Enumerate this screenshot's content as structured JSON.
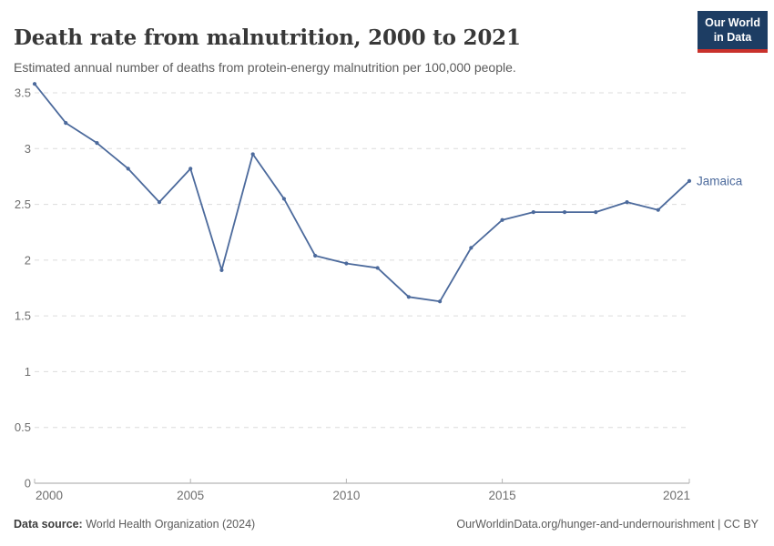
{
  "header": {
    "title": "Death rate from malnutrition, 2000 to 2021",
    "subtitle": "Estimated annual number of deaths from protein-energy malnutrition per 100,000 people.",
    "logo": {
      "line1": "Our World",
      "line2": "in Data"
    }
  },
  "chart_data": {
    "type": "line",
    "title": "Death rate from malnutrition, 2000 to 2021",
    "subtitle": "Estimated annual number of deaths from protein-energy malnutrition per 100,000 people.",
    "x": [
      2000,
      2001,
      2002,
      2003,
      2004,
      2005,
      2006,
      2007,
      2008,
      2009,
      2010,
      2011,
      2012,
      2013,
      2014,
      2015,
      2016,
      2017,
      2018,
      2019,
      2020,
      2021
    ],
    "series": [
      {
        "name": "Jamaica",
        "values": [
          3.58,
          3.23,
          3.05,
          2.82,
          2.52,
          2.82,
          1.91,
          2.95,
          2.55,
          2.04,
          1.97,
          1.93,
          1.67,
          1.63,
          2.11,
          2.36,
          2.43,
          2.43,
          2.43,
          2.52,
          2.45,
          2.71
        ]
      }
    ],
    "xlabel": "",
    "ylabel": "",
    "ylim": [
      0,
      3.5
    ],
    "yticks": [
      0,
      0.5,
      1,
      1.5,
      2,
      2.5,
      3,
      3.5
    ],
    "xticks": [
      2000,
      2005,
      2010,
      2015,
      2021
    ],
    "grid": "horizontal-dashed",
    "legend_position": "end-of-line-label",
    "end_label": "Jamaica"
  },
  "colors": {
    "line": "#4C6A9C",
    "grid": "#dcdcdc",
    "axis": "#a3a3a3",
    "tick": "#b5b5b5",
    "tick_text": "#6e6e6e",
    "entity_label": "#4C6A9C"
  },
  "footer": {
    "source_label": "Data source:",
    "source_value": " World Health Organization (2024)",
    "link": "OurWorldinData.org/hunger-and-undernourishment | CC BY"
  }
}
